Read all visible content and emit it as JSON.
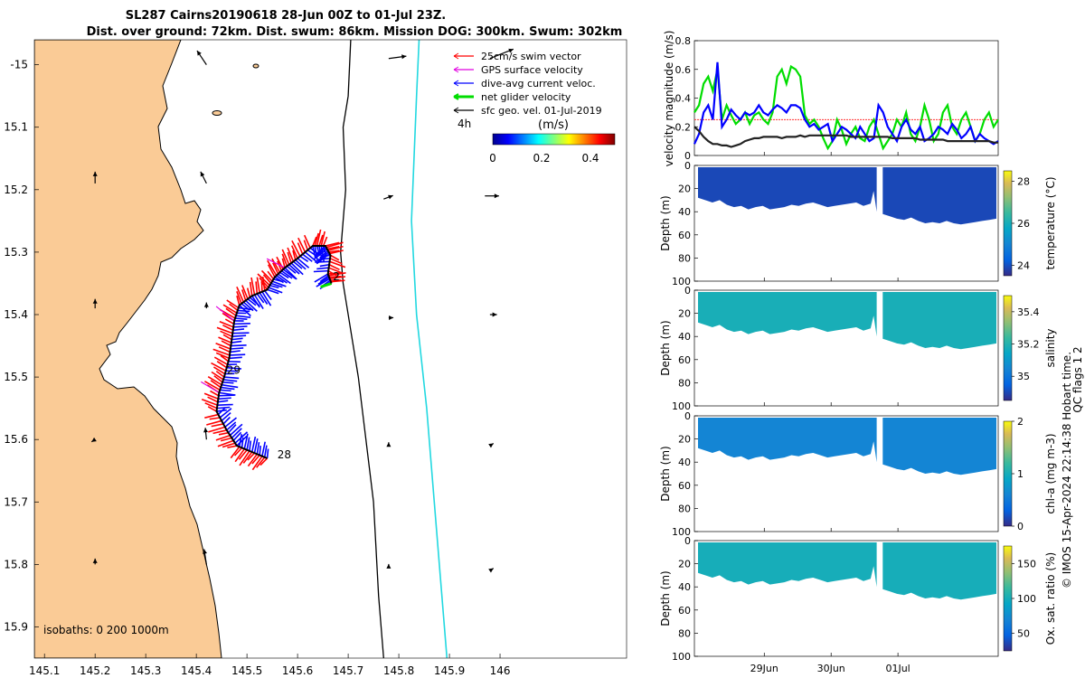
{
  "title": {
    "line1": "SL287 Cairns20190618 28-Jun 00Z to 01-Jul 23Z.",
    "line2": "Dist. over ground: 72km. Dist. swum: 86km. Mission DOG: 300km. Swum: 302km"
  },
  "colors": {
    "land": "#FACB96",
    "swim_vector": "#FF0000",
    "gps_velocity": "#E000E0",
    "dive_current": "#0000FF",
    "net_velocity": "#00DD00",
    "sfc_geo": "#000000",
    "isobath_200": "#000000",
    "isobath_1000": "#22D8E0"
  },
  "chart_data": [
    {
      "type": "scatter",
      "name": "map",
      "xlim": [
        145.08,
        146.25
      ],
      "ylim": [
        -15.95,
        -14.96
      ],
      "xticks": [
        "145.1",
        "145.2",
        "145.3",
        "145.4",
        "145.5",
        "145.6",
        "145.7",
        "145.8",
        "145.9",
        "146"
      ],
      "xtick_values": [
        145.1,
        145.2,
        145.3,
        145.4,
        145.5,
        145.6,
        145.7,
        145.8,
        145.9,
        146.0
      ],
      "yticks": [
        "-15",
        "15.1",
        "15.2",
        "15.3",
        "15.4",
        "15.5",
        "15.6",
        "15.7",
        "15.8",
        "15.9"
      ],
      "ytick_values": [
        -15.0,
        -15.1,
        -15.2,
        -15.3,
        -15.4,
        -15.5,
        -15.6,
        -15.7,
        -15.8,
        -15.9
      ],
      "legend": [
        {
          "label": "25cm/s swim vector",
          "color": "#FF0000"
        },
        {
          "label": "GPS surface velocity",
          "color": "#E000E0"
        },
        {
          "label": "dive-avg current veloc.",
          "color": "#0000FF"
        },
        {
          "label": "net glider velocity",
          "color": "#00DD00"
        },
        {
          "label": "sfc geo. vel. 01-Jul-2019",
          "color": "#000000"
        }
      ],
      "legend_placement": "top-right",
      "time_marker": "4h",
      "colorbar": {
        "label": "(m/s)",
        "ticks": [
          "0",
          "0.2",
          "0.4"
        ],
        "range": [
          0,
          0.5
        ]
      },
      "isobaths_label": "isobaths: 0   200  1000m",
      "day_labels": [
        {
          "text": "28",
          "lon": 145.56,
          "lat": -15.63
        },
        {
          "text": "29",
          "lon": 145.46,
          "lat": -15.495
        },
        {
          "text": "2",
          "lon": 145.67,
          "lat": -15.345
        }
      ],
      "track": [
        [
          145.54,
          -15.63
        ],
        [
          145.51,
          -15.62
        ],
        [
          145.48,
          -15.61
        ],
        [
          145.46,
          -15.585
        ],
        [
          145.44,
          -15.555
        ],
        [
          145.445,
          -15.525
        ],
        [
          145.455,
          -15.5
        ],
        [
          145.465,
          -15.47
        ],
        [
          145.47,
          -15.44
        ],
        [
          145.475,
          -15.41
        ],
        [
          145.485,
          -15.385
        ],
        [
          145.51,
          -15.37
        ],
        [
          145.54,
          -15.36
        ],
        [
          145.555,
          -15.34
        ],
        [
          145.575,
          -15.325
        ],
        [
          145.6,
          -15.31
        ],
        [
          145.63,
          -15.29
        ],
        [
          145.655,
          -15.29
        ],
        [
          145.665,
          -15.305
        ],
        [
          145.66,
          -15.335
        ],
        [
          145.667,
          -15.35
        ]
      ],
      "isobath_200": [
        [
          145.705,
          -14.96
        ],
        [
          145.7,
          -15.05
        ],
        [
          145.69,
          -15.1
        ],
        [
          145.695,
          -15.2
        ],
        [
          145.685,
          -15.3
        ],
        [
          145.69,
          -15.35
        ],
        [
          145.72,
          -15.5
        ],
        [
          145.75,
          -15.7
        ],
        [
          145.76,
          -15.85
        ],
        [
          145.77,
          -15.95
        ]
      ],
      "isobath_1000": [
        [
          145.84,
          -14.96
        ],
        [
          145.835,
          -15.05
        ],
        [
          145.83,
          -15.15
        ],
        [
          145.825,
          -15.25
        ],
        [
          145.835,
          -15.4
        ],
        [
          145.855,
          -15.55
        ],
        [
          145.87,
          -15.7
        ],
        [
          145.88,
          -15.8
        ],
        [
          145.895,
          -15.95
        ]
      ],
      "sfc_geo_vectors": [
        {
          "lon": 145.42,
          "lat": -15.0,
          "u": -0.08,
          "v": 0.12
        },
        {
          "lon": 145.78,
          "lat": -14.99,
          "u": 0.15,
          "v": 0.02
        },
        {
          "lon": 145.98,
          "lat": -14.99,
          "u": 0.2,
          "v": 0.08
        },
        {
          "lon": 145.2,
          "lat": -15.19,
          "u": 0.0,
          "v": 0.1
        },
        {
          "lon": 145.42,
          "lat": -15.19,
          "u": -0.05,
          "v": 0.1
        },
        {
          "lon": 145.77,
          "lat": -15.215,
          "u": 0.08,
          "v": 0.03
        },
        {
          "lon": 145.97,
          "lat": -15.21,
          "u": 0.12,
          "v": 0.0
        },
        {
          "lon": 145.2,
          "lat": -15.39,
          "u": 0.0,
          "v": 0.08
        },
        {
          "lon": 145.42,
          "lat": -15.39,
          "u": 0.0,
          "v": 0.05
        },
        {
          "lon": 145.78,
          "lat": -15.405,
          "u": 0.04,
          "v": 0.0
        },
        {
          "lon": 145.98,
          "lat": -15.4,
          "u": 0.06,
          "v": 0.0
        },
        {
          "lon": 145.2,
          "lat": -15.6,
          "u": -0.03,
          "v": -0.02
        },
        {
          "lon": 145.42,
          "lat": -15.6,
          "u": -0.01,
          "v": 0.1
        },
        {
          "lon": 145.78,
          "lat": -15.61,
          "u": 0.0,
          "v": 0.03
        },
        {
          "lon": 145.98,
          "lat": -15.61,
          "u": 0.03,
          "v": 0.02
        },
        {
          "lon": 145.2,
          "lat": -15.8,
          "u": 0.0,
          "v": 0.05
        },
        {
          "lon": 145.42,
          "lat": -15.8,
          "u": -0.02,
          "v": 0.13
        },
        {
          "lon": 145.78,
          "lat": -15.805,
          "u": 0.0,
          "v": 0.03
        },
        {
          "lon": 145.98,
          "lat": -15.81,
          "u": 0.03,
          "v": 0.02
        }
      ]
    },
    {
      "type": "line",
      "name": "velocity",
      "ylabel": "velocity magnitude (m/s)",
      "ylim": [
        0,
        0.8
      ],
      "yticks": [
        "0",
        "0.2",
        "0.4",
        "0.6",
        "0.8"
      ],
      "ytick_values": [
        0,
        0.2,
        0.4,
        0.6,
        0.8
      ],
      "xlim": [
        0,
        1
      ],
      "reference_value": 0.25,
      "series": [
        {
          "color": "#00DD00",
          "values": [
            0.3,
            0.35,
            0.5,
            0.55,
            0.45,
            0.6,
            0.25,
            0.35,
            0.28,
            0.22,
            0.25,
            0.3,
            0.22,
            0.28,
            0.3,
            0.25,
            0.22,
            0.3,
            0.55,
            0.6,
            0.5,
            0.62,
            0.6,
            0.55,
            0.28,
            0.22,
            0.25,
            0.2,
            0.12,
            0.05,
            0.1,
            0.25,
            0.18,
            0.08,
            0.15,
            0.2,
            0.12,
            0.1,
            0.2,
            0.25,
            0.15,
            0.05,
            0.1,
            0.15,
            0.25,
            0.2,
            0.3,
            0.15,
            0.1,
            0.2,
            0.35,
            0.25,
            0.1,
            0.15,
            0.3,
            0.35,
            0.2,
            0.15,
            0.25,
            0.3,
            0.2,
            0.1,
            0.15,
            0.25,
            0.3,
            0.2,
            0.25
          ]
        },
        {
          "color": "#0000FF",
          "values": [
            0.08,
            0.15,
            0.3,
            0.35,
            0.25,
            0.65,
            0.2,
            0.25,
            0.32,
            0.28,
            0.25,
            0.3,
            0.28,
            0.3,
            0.35,
            0.3,
            0.28,
            0.32,
            0.35,
            0.33,
            0.3,
            0.35,
            0.35,
            0.33,
            0.25,
            0.2,
            0.22,
            0.18,
            0.2,
            0.22,
            0.1,
            0.15,
            0.2,
            0.18,
            0.15,
            0.12,
            0.2,
            0.15,
            0.1,
            0.12,
            0.35,
            0.3,
            0.2,
            0.15,
            0.1,
            0.2,
            0.25,
            0.18,
            0.15,
            0.2,
            0.1,
            0.12,
            0.15,
            0.2,
            0.18,
            0.15,
            0.22,
            0.18,
            0.12,
            0.15,
            0.2,
            0.1,
            0.15,
            0.12,
            0.1,
            0.08,
            0.1
          ]
        },
        {
          "color": "#222222",
          "values": [
            0.2,
            0.17,
            0.13,
            0.1,
            0.08,
            0.08,
            0.07,
            0.07,
            0.06,
            0.07,
            0.08,
            0.1,
            0.11,
            0.12,
            0.12,
            0.13,
            0.13,
            0.13,
            0.13,
            0.12,
            0.13,
            0.13,
            0.13,
            0.14,
            0.13,
            0.14,
            0.14,
            0.14,
            0.14,
            0.14,
            0.14,
            0.14,
            0.14,
            0.14,
            0.13,
            0.13,
            0.13,
            0.13,
            0.13,
            0.13,
            0.13,
            0.13,
            0.13,
            0.12,
            0.12,
            0.12,
            0.12,
            0.12,
            0.12,
            0.11,
            0.11,
            0.11,
            0.11,
            0.11,
            0.11,
            0.1,
            0.1,
            0.1,
            0.1,
            0.1,
            0.1,
            0.1,
            0.1,
            0.1,
            0.1,
            0.09,
            0.09
          ]
        }
      ]
    },
    {
      "type": "heatmap",
      "name": "temperature",
      "ylabel": "Depth (m)",
      "colorbar_label": "temperature (°C)",
      "colorbar_ticks": [
        "24",
        "26",
        "28"
      ],
      "colorbar_tick_values": [
        24,
        26,
        28
      ],
      "colorbar_range": [
        23.5,
        28.5
      ],
      "colormap": "parula",
      "value": 23.9,
      "ylim": [
        0,
        100
      ],
      "yticks": [
        "0",
        "20",
        "40",
        "60",
        "80",
        "100"
      ],
      "ytick_values": [
        0,
        20,
        40,
        60,
        80,
        100
      ]
    },
    {
      "type": "heatmap",
      "name": "salinity",
      "ylabel": "Depth (m)",
      "colorbar_label": "salinity",
      "colorbar_ticks": [
        "35",
        "35.2",
        "35.4"
      ],
      "colorbar_tick_values": [
        35.0,
        35.2,
        35.4
      ],
      "colorbar_range": [
        34.85,
        35.5
      ],
      "colormap": "parula",
      "value": 35.18,
      "ylim": [
        0,
        100
      ],
      "yticks": [
        "0",
        "20",
        "40",
        "60",
        "80",
        "100"
      ],
      "ytick_values": [
        0,
        20,
        40,
        60,
        80,
        100
      ]
    },
    {
      "type": "heatmap",
      "name": "chl-a",
      "ylabel": "Depth (m)",
      "colorbar_label": "chl-a (mg m-3)",
      "colorbar_ticks": [
        "0",
        "1",
        "2"
      ],
      "colorbar_tick_values": [
        0,
        1,
        2
      ],
      "colorbar_range": [
        0,
        2
      ],
      "colormap": "parula",
      "value": 0.6,
      "ylim": [
        0,
        100
      ],
      "yticks": [
        "0",
        "20",
        "40",
        "60",
        "80",
        "100"
      ],
      "ytick_values": [
        0,
        20,
        40,
        60,
        80,
        100
      ]
    },
    {
      "type": "heatmap",
      "name": "oxygen",
      "ylabel": "Depth (m)",
      "colorbar_label": "Ox. sat. ratio (%)",
      "colorbar_ticks": [
        "50",
        "100",
        "150"
      ],
      "colorbar_tick_values": [
        50,
        100,
        150
      ],
      "colorbar_range": [
        25,
        175
      ],
      "colormap": "parula",
      "value": 100,
      "ylim": [
        0,
        100
      ],
      "yticks": [
        "0",
        "20",
        "40",
        "60",
        "80",
        "100"
      ],
      "ytick_values": [
        0,
        20,
        40,
        60,
        80,
        100
      ]
    }
  ],
  "time_axis": {
    "ticks": [
      "29Jun",
      "30Jun",
      "01Jul"
    ],
    "tick_values": [
      0.23,
      0.45,
      0.67
    ]
  },
  "qc_label": "QC flags 1  2",
  "credit": "© IMOS 15-Apr-2024 22:14:38 Hobart time."
}
